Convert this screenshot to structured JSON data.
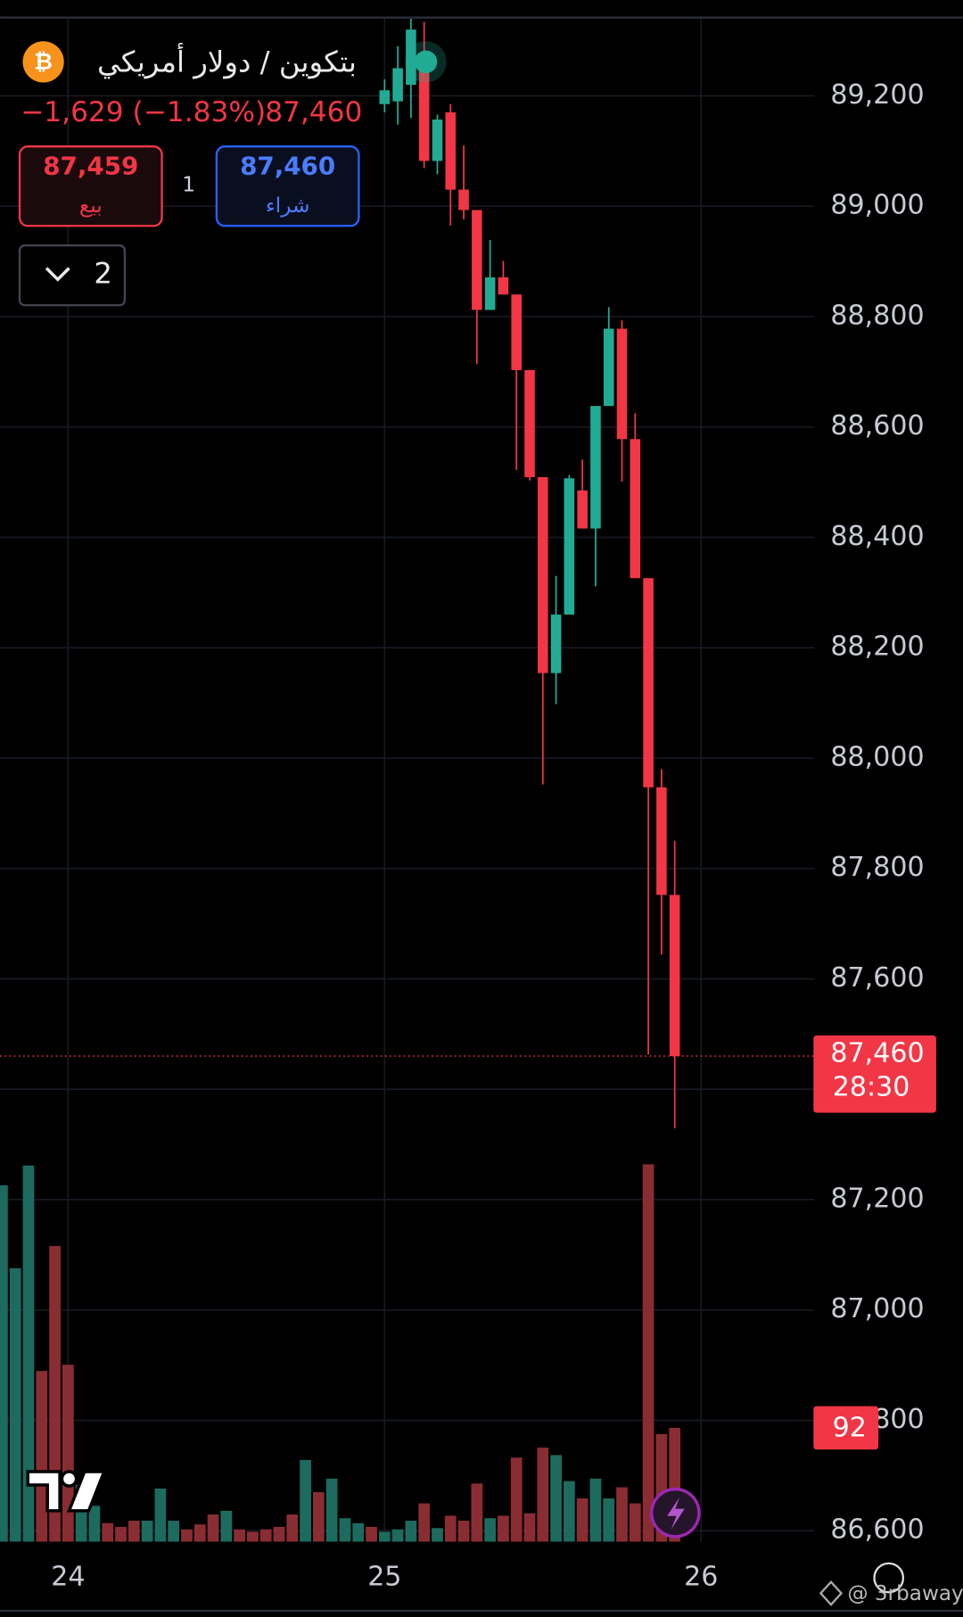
{
  "header": {
    "icon": "₿",
    "title": "بتكوين / دولار أمريكي",
    "change": "−1,629 (−1.83%)",
    "price": "87,460",
    "sell_price": "87,459",
    "sell_label": "بيع",
    "quantity": "1",
    "buy_price": "87,460",
    "buy_label": "شراء",
    "layouts": "2",
    "watermark": "@ 3rbaway"
  },
  "chart_data": {
    "type": "candlestick",
    "up_color": "#22ab94",
    "down_color": "#f23645",
    "grid": true,
    "x": [
      24,
      25,
      26,
      27,
      28,
      29,
      30,
      31,
      32,
      33,
      34,
      35,
      36,
      37,
      38,
      39,
      40,
      41,
      42,
      43,
      44,
      45,
      46
    ],
    "open": [
      89185,
      89190,
      89220,
      89260,
      89082,
      89170,
      89030,
      88993,
      88812,
      88871,
      88840,
      88703,
      88509,
      88154,
      88260,
      88485,
      88416,
      88638,
      88778,
      88578,
      88326,
      87947,
      87752
    ],
    "high": [
      89230,
      89290,
      89340,
      89334,
      89166,
      89185,
      89110,
      88993,
      88939,
      88901,
      88840,
      88703,
      88509,
      88330,
      88513,
      88541,
      88638,
      88817,
      88793,
      88625,
      88326,
      87980,
      87850
    ],
    "low": [
      89170,
      89148,
      89160,
      89069,
      89058,
      88965,
      88976,
      88714,
      88812,
      88840,
      88522,
      88503,
      87952,
      88098,
      88260,
      88416,
      88311,
      88638,
      88501,
      88326,
      87463,
      87644,
      87329
    ],
    "close": [
      89210,
      89250,
      89320,
      89082,
      89157,
      89030,
      88993,
      88812,
      88871,
      88840,
      88703,
      88509,
      88154,
      88260,
      88507,
      88416,
      88638,
      88778,
      88578,
      88326,
      87947,
      87752,
      87460
    ],
    "xlim": [
      -5.16,
      56.6
    ],
    "xticks": [
      {
        "value": 0,
        "label": "24"
      },
      {
        "value": 24,
        "label": "25"
      },
      {
        "value": 48,
        "label": "26"
      }
    ],
    "ylim": [
      86580,
      89340
    ],
    "yticks": [
      {
        "value": 86600,
        "label": "86,600"
      },
      {
        "value": 86800,
        "label": "86,800"
      },
      {
        "value": 87000,
        "label": "87,000"
      },
      {
        "value": 87200,
        "label": "87,200"
      },
      {
        "value": 87400,
        "label": "87,400"
      },
      {
        "value": 87600,
        "label": "87,600"
      },
      {
        "value": 87800,
        "label": "87,800"
      },
      {
        "value": 88000,
        "label": "88,000"
      },
      {
        "value": 88200,
        "label": "88,200"
      },
      {
        "value": 88400,
        "label": "88,400"
      },
      {
        "value": 88600,
        "label": "88,600"
      },
      {
        "value": 88800,
        "label": "88,800"
      },
      {
        "value": 89000,
        "label": "89,000"
      },
      {
        "value": 89200,
        "label": "89,200"
      }
    ],
    "last_price": {
      "value": 87460,
      "label": "87,460",
      "countdown": "28:30",
      "color": "#f23645"
    },
    "volume": {
      "x": [
        -5,
        -4,
        -3,
        -2,
        -1,
        0,
        1,
        2,
        3,
        4,
        5,
        6,
        7,
        8,
        9,
        10,
        11,
        12,
        13,
        14,
        15,
        16,
        17,
        18,
        19,
        20,
        21,
        22,
        23,
        24,
        25,
        26,
        27,
        28,
        29,
        30,
        31,
        32,
        33,
        34,
        35,
        36,
        37,
        38,
        39,
        40,
        41,
        42,
        43,
        44,
        45,
        46
      ],
      "values": [
        288,
        221,
        304,
        138,
        239,
        143,
        46,
        29,
        15,
        12,
        17,
        17,
        43,
        17,
        10,
        14,
        22,
        25,
        10,
        8,
        10,
        12,
        22,
        66,
        40,
        51,
        19,
        15,
        12,
        8,
        10,
        17,
        31,
        11,
        21,
        17,
        47,
        19,
        21,
        68,
        23,
        76,
        70,
        49,
        35,
        51,
        35,
        44,
        31,
        305,
        87,
        92
      ],
      "colors": [
        "#1d6b5f",
        "#1d6b5f",
        "#1d6b5f",
        "#8a2d33",
        "#8a2d33",
        "#8a2d33",
        "#1d6b5f",
        "#1d6b5f",
        "#8a2d33",
        "#8a2d33",
        "#8a2d33",
        "#1d6b5f",
        "#1d6b5f",
        "#1d6b5f",
        "#8a2d33",
        "#8a2d33",
        "#8a2d33",
        "#1d6b5f",
        "#8a2d33",
        "#8a2d33",
        "#8a2d33",
        "#8a2d33",
        "#8a2d33",
        "#1d6b5f",
        "#8a2d33",
        "#1d6b5f",
        "#1d6b5f",
        "#1d6b5f",
        "#8a2d33",
        "#1d6b5f",
        "#1d6b5f",
        "#1d6b5f",
        "#8a2d33",
        "#1d6b5f",
        "#8a2d33",
        "#8a2d33",
        "#8a2d33",
        "#1d6b5f",
        "#8a2d33",
        "#8a2d33",
        "#8a2d33",
        "#8a2d33",
        "#1d6b5f",
        "#1d6b5f",
        "#8a2d33",
        "#1d6b5f",
        "#1d6b5f",
        "#8a2d33",
        "#8a2d33",
        "#8a2d33",
        "#8a2d33",
        "#8a2d33"
      ]
    }
  }
}
